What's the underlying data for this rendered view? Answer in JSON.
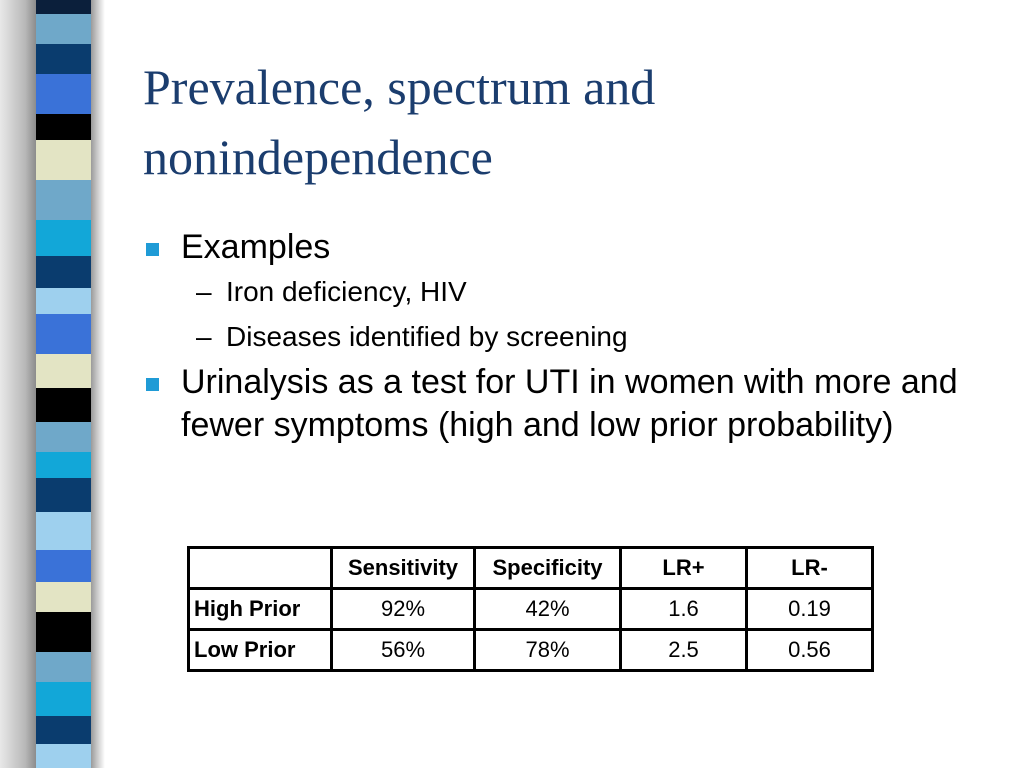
{
  "title": "Prevalence, spectrum and nonindependence",
  "bullets": [
    {
      "text": "Examples",
      "sub": [
        "Iron deficiency, HIV",
        "Diseases identified by screening"
      ]
    },
    {
      "text": "Urinalysis as a test for UTI in women with more and fewer symptoms (high and low prior probability)",
      "sub": []
    }
  ],
  "table": {
    "headers": [
      "",
      "Sensitivity",
      "Specificity",
      "LR+",
      "LR-"
    ],
    "rows": [
      [
        "High Prior",
        "92%",
        "42%",
        "1.6",
        "0.19"
      ],
      [
        "Low Prior",
        "56%",
        "78%",
        "2.5",
        "0.56"
      ]
    ]
  },
  "colors": {
    "title": "#1b3d6e",
    "bullet": "#1f9bd6",
    "stripes": [
      "#0b1f3b",
      "#6fa8c9",
      "#0a3c6e",
      "#3a72d8",
      "#e3e4c4",
      "#000000",
      "#12a7d8",
      "#9ed0ee"
    ]
  }
}
